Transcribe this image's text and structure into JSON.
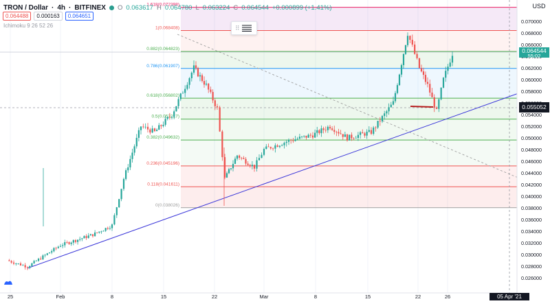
{
  "header": {
    "symbol": "TRON / Dollar",
    "interval": "4h",
    "exchange": "BITFINEX",
    "ohlc": {
      "o_label": "O",
      "o": "0.063617",
      "h_label": "H",
      "h": "0.064780",
      "l_label": "L",
      "l": "0.063224",
      "c_label": "C",
      "c": "0.064544",
      "change": "+0.000899 (+1.41%)"
    },
    "boxes": {
      "bid": "0.064488",
      "spread": "0.000163",
      "ask": "0.064651"
    },
    "indicator": "Ichimoku 9 26 52 26"
  },
  "price_axis": {
    "currency": "USD",
    "last_price": "0.064544",
    "countdown": "55:02",
    "crosshair_price": "0.055052"
  },
  "crosshair_date": "05 Apr '21  00:00",
  "colors": {
    "up": "#26a69a",
    "down": "#ef5350",
    "trendline": "#3a36d9",
    "price_tag": "#26a69a",
    "crosshair_tag": "#131722"
  },
  "fib_levels": [
    {
      "label": "1.618(0.072398)",
      "price": 0.0724,
      "color": "#e91e63"
    },
    {
      "label": "1(0.068408)",
      "price": 0.068408,
      "color": "#ef5350"
    },
    {
      "label": "0.882(0.064823)",
      "price": 0.064823,
      "color": "#4caf50"
    },
    {
      "label": "0.786(0.061907)",
      "price": 0.061907,
      "color": "#2196f3"
    },
    {
      "label": "0.618(0.056802)",
      "price": 0.056802,
      "color": "#4caf50"
    },
    {
      "label": "0.5(0.053217)",
      "price": 0.053217,
      "color": "#4caf50"
    },
    {
      "label": "0.382(0.049632)",
      "price": 0.049632,
      "color": "#4caf50"
    },
    {
      "label": "0.236(0.045196)",
      "price": 0.045196,
      "color": "#ef5350"
    },
    {
      "label": "0.118(0.041611)",
      "price": 0.041611,
      "color": "#ef5350"
    },
    {
      "label": "0(0.038026)",
      "price": 0.038026,
      "color": "#9e9e9e"
    }
  ],
  "chart_data": {
    "type": "candlestick",
    "title": "",
    "xlabel": "",
    "ylabel": "",
    "ylim": [
      0.0243,
      0.0745
    ],
    "y_ticks": [
      "0.070000",
      "0.068000",
      "0.066000",
      "0.064000",
      "0.062000",
      "0.060000",
      "0.058000",
      "0.056000",
      "0.054000",
      "0.052000",
      "0.050000",
      "0.048000",
      "0.046000",
      "0.044000",
      "0.042000",
      "0.040000",
      "0.038000",
      "0.036000",
      "0.034000",
      "0.032000",
      "0.030000",
      "0.028000",
      "0.026000"
    ],
    "x_ticks": [
      "25",
      "Feb",
      "8",
      "15",
      "22",
      "Mar",
      "8",
      "15",
      "22",
      "26"
    ],
    "approx_close_path": [
      [
        "Jan 25",
        0.029
      ],
      [
        "Jan 28",
        0.0279
      ],
      [
        "Feb 1",
        0.0316
      ],
      [
        "Feb 5",
        0.0334
      ],
      [
        "Feb 8",
        0.035
      ],
      [
        "Feb 10",
        0.043
      ],
      [
        "Feb 12",
        0.052
      ],
      [
        "Feb 14",
        0.051
      ],
      [
        "Feb 16",
        0.054
      ],
      [
        "Feb 18",
        0.062
      ],
      [
        "Feb 20",
        0.059
      ],
      [
        "Feb 21",
        0.055
      ],
      [
        "Feb 22",
        0.043
      ],
      [
        "Feb 24",
        0.047
      ],
      [
        "Feb 27",
        0.045
      ],
      [
        "Mar 1",
        0.048
      ],
      [
        "Mar 4",
        0.0495
      ],
      [
        "Mar 7",
        0.0505
      ],
      [
        "Mar 10",
        0.052
      ],
      [
        "Mar 13",
        0.05
      ],
      [
        "Mar 16",
        0.051
      ],
      [
        "Mar 19",
        0.056
      ],
      [
        "Mar 20",
        0.068
      ],
      [
        "Mar 22",
        0.062
      ],
      [
        "Mar 23",
        0.059
      ],
      [
        "Mar 24",
        0.0545
      ],
      [
        "Mar 25",
        0.06
      ],
      [
        "Mar 26",
        0.0645
      ]
    ]
  }
}
